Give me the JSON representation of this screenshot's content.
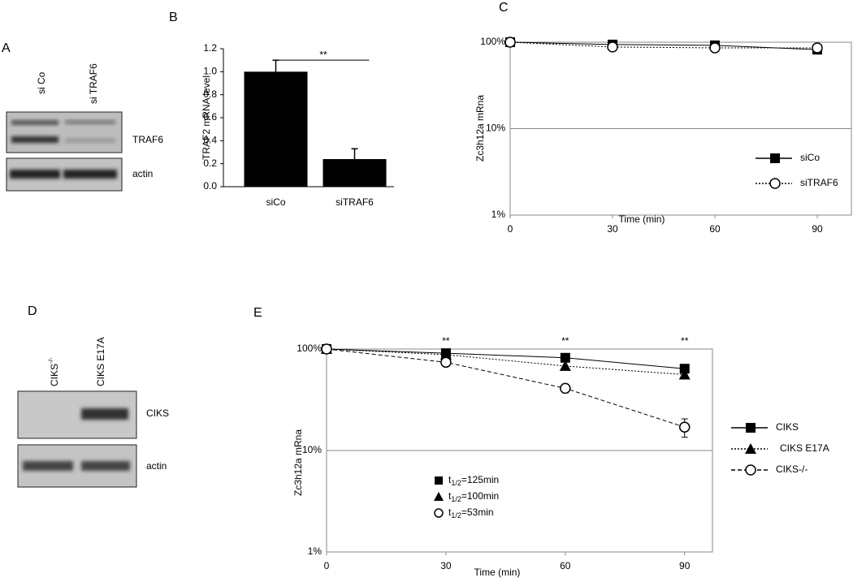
{
  "blots": [
    {
      "panel_label": "A",
      "lanes": [
        {
          "text": "si Co"
        },
        {
          "text": "si TRAF6"
        }
      ],
      "bands": [
        "TRAF6",
        "actin"
      ]
    },
    {
      "panel_label": "D",
      "lanes": [
        {
          "text": "CIKS",
          "sup": "-/-"
        },
        {
          "text": "CIKS E17A"
        }
      ],
      "bands": [
        "CIKS",
        "actin"
      ]
    }
  ],
  "chart_data": [
    {
      "type": "bar",
      "panel_label": "B",
      "ylabel": "TRAF2 mRNA level",
      "categories": [
        "siCo",
        "siTRAF6"
      ],
      "values": [
        1.0,
        0.24
      ],
      "errors": [
        0.1,
        0.09
      ],
      "color": "#000000",
      "ylim": [
        0,
        1.2
      ],
      "yticks": [
        {
          "value": 0,
          "label": "0.0"
        },
        {
          "value": 0.2,
          "label": "0.2"
        },
        {
          "value": 0.4,
          "label": "0.4"
        },
        {
          "value": 0.6,
          "label": "0.6"
        },
        {
          "value": 0.8,
          "label": "0.8"
        },
        {
          "value": 1.0,
          "label": "1.0"
        },
        {
          "value": 1.2,
          "label": "1.2"
        }
      ],
      "significance": "**"
    },
    {
      "type": "line",
      "panel_label": "C",
      "xlabel": "Time (min)",
      "ylabel": "Zc3h12a mRna",
      "log_y": true,
      "grid": true,
      "x": [
        0,
        30,
        60,
        90
      ],
      "xlim": [
        0,
        100
      ],
      "xticks": [
        0,
        30,
        60,
        90
      ],
      "ylim": [
        1,
        100
      ],
      "yticks": [
        {
          "value": 100,
          "label": "100%"
        },
        {
          "value": 10,
          "label": "10%"
        },
        {
          "value": 1,
          "label": "1%"
        }
      ],
      "series": [
        {
          "name": "siCo",
          "color": "#000000",
          "marker": "square",
          "dash": "solid",
          "values": [
            100,
            94,
            92,
            82
          ]
        },
        {
          "name": "siTRAF6",
          "color": "#000000",
          "marker": "circle",
          "dash": "dotted",
          "values": [
            100,
            88,
            86,
            86
          ]
        }
      ]
    },
    {
      "type": "line",
      "panel_label": "E",
      "xlabel": "Time (min)",
      "ylabel": "Zc3h12a mRna",
      "log_y": true,
      "grid": true,
      "x": [
        0,
        30,
        60,
        90
      ],
      "xlim": [
        0,
        97
      ],
      "xticks": [
        0,
        30,
        60,
        90
      ],
      "ylim": [
        1,
        100
      ],
      "yticks": [
        {
          "value": 100,
          "label": "100%"
        },
        {
          "value": 10,
          "label": "10%"
        },
        {
          "value": 1,
          "label": "1%"
        }
      ],
      "series": [
        {
          "name": "CIKS",
          "color": "#000000",
          "marker": "square",
          "dash": "solid",
          "values": [
            100,
            91,
            82,
            64
          ]
        },
        {
          "name": "CIKS E17A",
          "color": "#000000",
          "marker": "triangle",
          "dash": "dotted",
          "values": [
            100,
            88,
            68,
            56
          ]
        },
        {
          "name": "CIKS-/-",
          "color": "#000000",
          "marker": "circle",
          "dash": "dashed",
          "values": [
            100,
            74,
            41,
            17
          ],
          "errors": [
            0,
            4,
            4,
            3.5
          ]
        }
      ],
      "annotations": [
        {
          "text": "**",
          "x": 30
        },
        {
          "text": "**",
          "x": 60
        },
        {
          "text": "**",
          "x": 90
        }
      ],
      "halflife_labels": [
        {
          "marker": "square",
          "prefix": "t",
          "sub": "1/2",
          "suffix": "=125min"
        },
        {
          "marker": "triangle",
          "prefix": "t",
          "sub": "1/2",
          "suffix": "=100min"
        },
        {
          "marker": "circle",
          "prefix": "t",
          "sub": "1/2",
          "suffix": "=53min"
        }
      ]
    }
  ]
}
